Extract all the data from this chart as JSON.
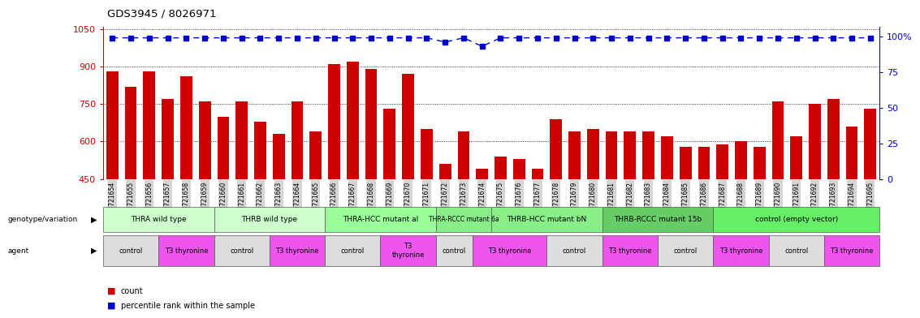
{
  "title": "GDS3945 / 8026971",
  "samples": [
    "GSM721654",
    "GSM721655",
    "GSM721656",
    "GSM721657",
    "GSM721658",
    "GSM721659",
    "GSM721660",
    "GSM721661",
    "GSM721662",
    "GSM721663",
    "GSM721664",
    "GSM721665",
    "GSM721666",
    "GSM721667",
    "GSM721668",
    "GSM721669",
    "GSM721670",
    "GSM721671",
    "GSM721672",
    "GSM721673",
    "GSM721674",
    "GSM721675",
    "GSM721676",
    "GSM721677",
    "GSM721678",
    "GSM721679",
    "GSM721680",
    "GSM721681",
    "GSM721682",
    "GSM721683",
    "GSM721684",
    "GSM721685",
    "GSM721686",
    "GSM721687",
    "GSM721688",
    "GSM721689",
    "GSM721690",
    "GSM721691",
    "GSM721692",
    "GSM721693",
    "GSM721694",
    "GSM721695"
  ],
  "bar_values": [
    880,
    820,
    880,
    770,
    860,
    760,
    700,
    760,
    680,
    630,
    760,
    640,
    910,
    920,
    890,
    730,
    870,
    650,
    510,
    640,
    490,
    540,
    530,
    490,
    690,
    640,
    650,
    640,
    640,
    640,
    620,
    580,
    580,
    590,
    600,
    580,
    760,
    620,
    750,
    770,
    660,
    730
  ],
  "percentile_values": [
    99,
    99,
    99,
    99,
    99,
    99,
    99,
    99,
    99,
    99,
    99,
    99,
    99,
    99,
    99,
    99,
    99,
    99,
    96,
    99,
    93,
    99,
    99,
    99,
    99,
    99,
    99,
    99,
    99,
    99,
    99,
    99,
    99,
    99,
    99,
    99,
    99,
    99,
    99,
    99,
    99,
    99
  ],
  "ylim_left": [
    450,
    1060
  ],
  "yticks_left": [
    450,
    600,
    750,
    900,
    1050
  ],
  "ylim_right": [
    0,
    107
  ],
  "yticks_right": [
    0,
    25,
    50,
    75,
    100
  ],
  "ytick_right_labels": [
    "0",
    "25",
    "50",
    "75",
    "100%"
  ],
  "bar_color": "#cc0000",
  "percentile_color": "#0000cc",
  "bg_color": "#ffffff",
  "tick_bg": "#d4d4d4",
  "genotype_groups": [
    {
      "label": "THRA wild type",
      "start": 0,
      "end": 5,
      "color": "#ccffcc"
    },
    {
      "label": "THRB wild type",
      "start": 6,
      "end": 11,
      "color": "#ccffcc"
    },
    {
      "label": "THRA-HCC mutant al",
      "start": 12,
      "end": 17,
      "color": "#99ff99"
    },
    {
      "label": "THRA-RCCC mutant 6a",
      "start": 18,
      "end": 20,
      "color": "#88ee88"
    },
    {
      "label": "THRB-HCC mutant bN",
      "start": 21,
      "end": 26,
      "color": "#88ee88"
    },
    {
      "label": "THRB-RCCC mutant 15b",
      "start": 27,
      "end": 32,
      "color": "#66cc66"
    },
    {
      "label": "control (empty vector)",
      "start": 33,
      "end": 41,
      "color": "#66ee66"
    }
  ],
  "agent_groups": [
    {
      "label": "control",
      "start": 0,
      "end": 2,
      "color": "#dddddd"
    },
    {
      "label": "T3 thyronine",
      "start": 3,
      "end": 5,
      "color": "#ee55ee"
    },
    {
      "label": "control",
      "start": 6,
      "end": 8,
      "color": "#dddddd"
    },
    {
      "label": "T3 thyronine",
      "start": 9,
      "end": 11,
      "color": "#ee55ee"
    },
    {
      "label": "control",
      "start": 12,
      "end": 14,
      "color": "#dddddd"
    },
    {
      "label": "T3\nthyronine",
      "start": 15,
      "end": 17,
      "color": "#ee55ee"
    },
    {
      "label": "control",
      "start": 18,
      "end": 19,
      "color": "#dddddd"
    },
    {
      "label": "T3 thyronine",
      "start": 20,
      "end": 23,
      "color": "#ee55ee"
    },
    {
      "label": "control",
      "start": 24,
      "end": 26,
      "color": "#dddddd"
    },
    {
      "label": "T3 thyronine",
      "start": 27,
      "end": 29,
      "color": "#ee55ee"
    },
    {
      "label": "control",
      "start": 30,
      "end": 32,
      "color": "#dddddd"
    },
    {
      "label": "T3 thyronine",
      "start": 33,
      "end": 35,
      "color": "#ee55ee"
    },
    {
      "label": "control",
      "start": 36,
      "end": 38,
      "color": "#dddddd"
    },
    {
      "label": "T3 thyronine",
      "start": 39,
      "end": 41,
      "color": "#ee55ee"
    }
  ]
}
